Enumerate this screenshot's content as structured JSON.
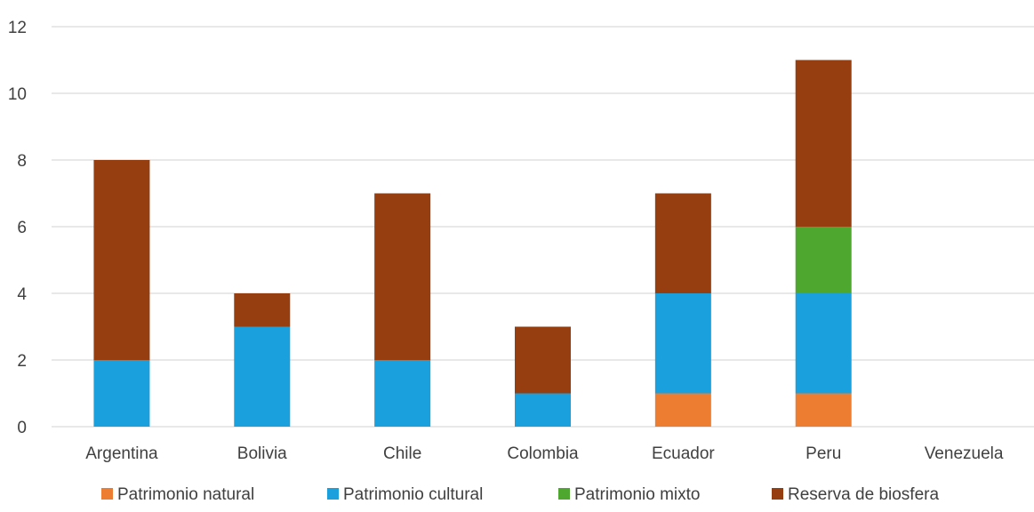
{
  "chart_data": {
    "type": "bar",
    "stacked": true,
    "categories": [
      "Argentina",
      "Bolivia",
      "Chile",
      "Colombia",
      "Ecuador",
      "Peru",
      "Venezuela"
    ],
    "series": [
      {
        "name": "Patrimonio natural",
        "color": "#ED7D31",
        "values": [
          0,
          0,
          0,
          0,
          1,
          1,
          0
        ]
      },
      {
        "name": "Patrimonio cultural",
        "color": "#1AA0DC",
        "values": [
          2,
          3,
          2,
          1,
          3,
          3,
          0
        ]
      },
      {
        "name": "Patrimonio mixto",
        "color": "#4EA72E",
        "values": [
          0,
          0,
          0,
          0,
          0,
          2,
          0
        ]
      },
      {
        "name": "Reserva de biosfera",
        "color": "#963E10",
        "values": [
          6,
          1,
          5,
          2,
          3,
          5,
          0
        ]
      }
    ],
    "ylim": [
      0,
      12
    ],
    "yticks": [
      "0",
      "2",
      "4",
      "6",
      "8",
      "10",
      "12"
    ],
    "grid": true,
    "legend_position": "bottom",
    "gridline_color": "#D9D9D9"
  }
}
